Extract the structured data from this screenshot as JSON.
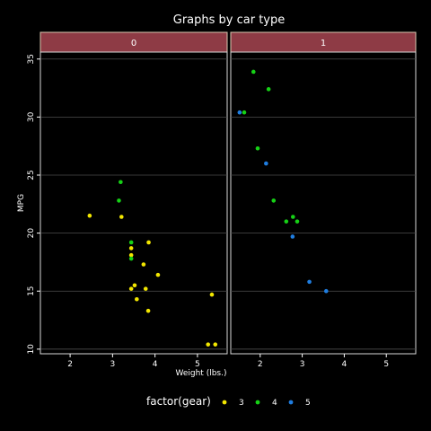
{
  "chart_data": {
    "type": "scatter",
    "title": "Graphs by car type",
    "xlabel": "Weight (lbs.)",
    "ylabel": "MPG",
    "xlim": [
      1.3,
      5.7
    ],
    "ylim": [
      9.6,
      35.6
    ],
    "x_ticks": [
      2,
      3,
      4,
      5
    ],
    "y_ticks": [
      10,
      15,
      20,
      25,
      30,
      35
    ],
    "grid": true,
    "legend_position": "bottom",
    "legend_title": "factor(gear)",
    "legend": [
      {
        "label": "3",
        "color": "#f2e600"
      },
      {
        "label": "4",
        "color": "#16d116"
      },
      {
        "label": "5",
        "color": "#1f7de0"
      }
    ],
    "facets": [
      {
        "label": "0",
        "series": [
          {
            "name": "3",
            "points": [
              [
                2.46,
                21.5
              ],
              [
                3.21,
                21.4
              ],
              [
                3.44,
                18.7
              ],
              [
                3.44,
                18.1
              ],
              [
                3.44,
                15.2
              ],
              [
                3.52,
                15.5
              ],
              [
                3.57,
                14.3
              ],
              [
                3.73,
                17.3
              ],
              [
                3.78,
                15.2
              ],
              [
                3.84,
                13.3
              ],
              [
                3.85,
                19.2
              ],
              [
                4.07,
                16.4
              ],
              [
                5.25,
                10.4
              ],
              [
                5.34,
                14.7
              ],
              [
                5.42,
                10.4
              ]
            ]
          },
          {
            "name": "4",
            "points": [
              [
                3.15,
                22.8
              ],
              [
                3.19,
                24.4
              ],
              [
                3.44,
                19.2
              ],
              [
                3.44,
                17.8
              ]
            ]
          },
          {
            "name": "5",
            "points": []
          }
        ]
      },
      {
        "label": "1",
        "series": [
          {
            "name": "3",
            "points": []
          },
          {
            "name": "4",
            "points": [
              [
                1.84,
                33.9
              ],
              [
                2.2,
                32.4
              ],
              [
                1.62,
                30.4
              ],
              [
                1.94,
                27.3
              ],
              [
                2.32,
                22.8
              ],
              [
                2.62,
                21.0
              ],
              [
                2.78,
                21.4
              ],
              [
                2.88,
                21.0
              ]
            ]
          },
          {
            "name": "5",
            "points": [
              [
                1.51,
                30.4
              ],
              [
                2.14,
                26.0
              ],
              [
                2.77,
                19.7
              ],
              [
                3.17,
                15.8
              ],
              [
                3.57,
                15.0
              ]
            ]
          }
        ]
      }
    ]
  }
}
